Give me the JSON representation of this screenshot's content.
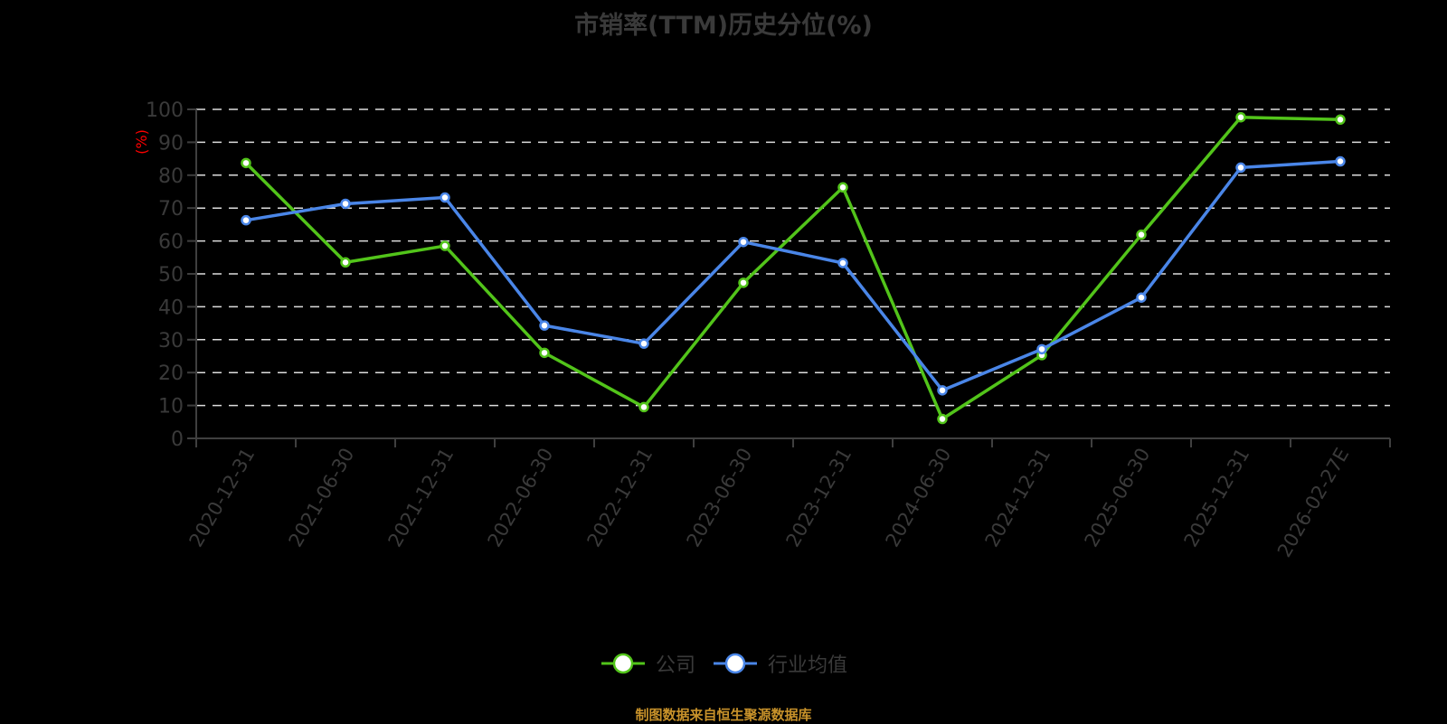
{
  "title": "市销率(TTM)历史分位(%)",
  "y_axis_unit": "(%)",
  "legend": [
    {
      "name": "公司",
      "color": "#52c41a"
    },
    {
      "name": "行业均值",
      "color": "#4a86e8"
    }
  ],
  "footer": "制图数据来自恒生聚源数据库",
  "colors": {
    "background": "#000000",
    "axis": "#3f3f3f",
    "grid": "#dddddd",
    "text": "#3a3a3a",
    "unit": "#ff0000",
    "footer": "#c8922a"
  },
  "chart_data": {
    "type": "line",
    "title": "市销率(TTM)历史分位(%)",
    "xlabel": "",
    "ylabel": "(%)",
    "ylim": [
      0,
      100
    ],
    "yticks": [
      0,
      10,
      20,
      30,
      40,
      50,
      60,
      70,
      80,
      90,
      100
    ],
    "grid": true,
    "legend_position": "bottom",
    "categories": [
      "2020-12-31",
      "2021-06-30",
      "2021-12-31",
      "2022-06-30",
      "2022-12-31",
      "2023-06-30",
      "2023-12-31",
      "2024-06-30",
      "2024-12-31",
      "2025-06-30",
      "2025-12-31",
      "2026-02-27E"
    ],
    "series": [
      {
        "name": "公司",
        "color": "#52c41a",
        "values": [
          83.7,
          53.5,
          58.5,
          26.0,
          9.5,
          47.3,
          76.3,
          5.9,
          25.3,
          61.9,
          97.6,
          96.9
        ]
      },
      {
        "name": "行业均值",
        "color": "#4a86e8",
        "values": [
          66.3,
          71.3,
          73.2,
          34.3,
          28.8,
          59.7,
          53.3,
          14.6,
          27.1,
          42.8,
          82.3,
          84.2
        ]
      }
    ]
  }
}
